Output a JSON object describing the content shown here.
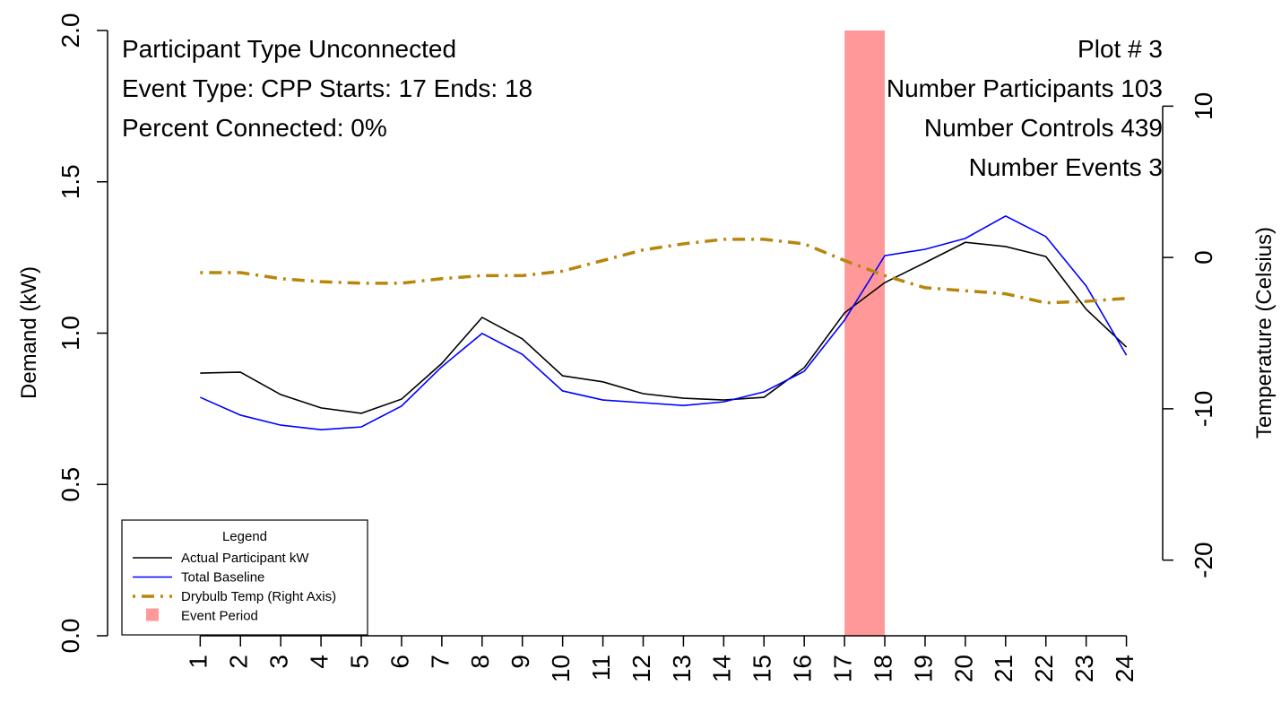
{
  "chart_data": {
    "type": "line",
    "annotations_left": [
      "Participant Type Unconnected",
      "Event Type: CPP Starts:  17  Ends:  18",
      "Percent Connected: 0%"
    ],
    "annotations_right": [
      "Plot # 3",
      "Number Participants 103",
      "Number Controls 439",
      "Number Events 3"
    ],
    "ylabel": "Demand (kW)",
    "y2label": "Temperature (Celsius)",
    "x": [
      1,
      2,
      3,
      4,
      5,
      6,
      7,
      8,
      9,
      10,
      11,
      12,
      13,
      14,
      15,
      16,
      17,
      18,
      19,
      20,
      21,
      22,
      23,
      24
    ],
    "xlim": [
      -1.3,
      24.9
    ],
    "xticks": [
      1,
      2,
      3,
      4,
      5,
      6,
      7,
      8,
      9,
      10,
      11,
      12,
      13,
      14,
      15,
      16,
      17,
      18,
      19,
      20,
      21,
      22,
      23,
      24
    ],
    "ylim": [
      0,
      2
    ],
    "yticks": [
      {
        "value": 0,
        "label": "0.0"
      },
      {
        "value": 0.5,
        "label": "0.5"
      },
      {
        "value": 1,
        "label": "1.0"
      },
      {
        "value": 1.5,
        "label": "1.5"
      },
      {
        "value": 2,
        "label": "2.0"
      }
    ],
    "y2lim": [
      -25,
      15
    ],
    "y2ticks": [
      -20,
      -10,
      0,
      10
    ],
    "series": [
      {
        "name": "Actual Participant kW",
        "color": "#000000",
        "dash": "solid",
        "values": [
          0.868,
          0.871,
          0.797,
          0.753,
          0.735,
          0.782,
          0.9,
          1.052,
          0.981,
          0.859,
          0.839,
          0.8,
          0.785,
          0.779,
          0.788,
          0.886,
          1.067,
          1.167,
          1.233,
          1.3,
          1.286,
          1.253,
          1.079,
          0.954
        ]
      },
      {
        "name": "Total Baseline",
        "color": "#0000ff",
        "dash": "solid",
        "values": [
          0.788,
          0.729,
          0.696,
          0.681,
          0.69,
          0.759,
          0.889,
          0.999,
          0.93,
          0.809,
          0.779,
          0.77,
          0.761,
          0.773,
          0.806,
          0.874,
          1.043,
          1.256,
          1.277,
          1.313,
          1.387,
          1.319,
          1.156,
          0.927
        ]
      },
      {
        "name": "Drybulb Temp (Right Axis)",
        "color": "#b8860b",
        "dash": "dotdash",
        "axis": "y2",
        "values": [
          -1.0,
          -1.0,
          -1.4,
          -1.6,
          -1.7,
          -1.7,
          -1.4,
          -1.2,
          -1.2,
          -0.9,
          -0.2,
          0.5,
          0.9,
          1.2,
          1.2,
          0.9,
          -0.2,
          -1.2,
          -2.0,
          -2.2,
          -2.4,
          -3.0,
          -2.9,
          -2.7
        ]
      }
    ],
    "event": {
      "name": "Event Period",
      "start": 17,
      "end": 18,
      "color": "#ff9999"
    },
    "legend": {
      "title": "Legend",
      "position": "bottomleft"
    }
  }
}
